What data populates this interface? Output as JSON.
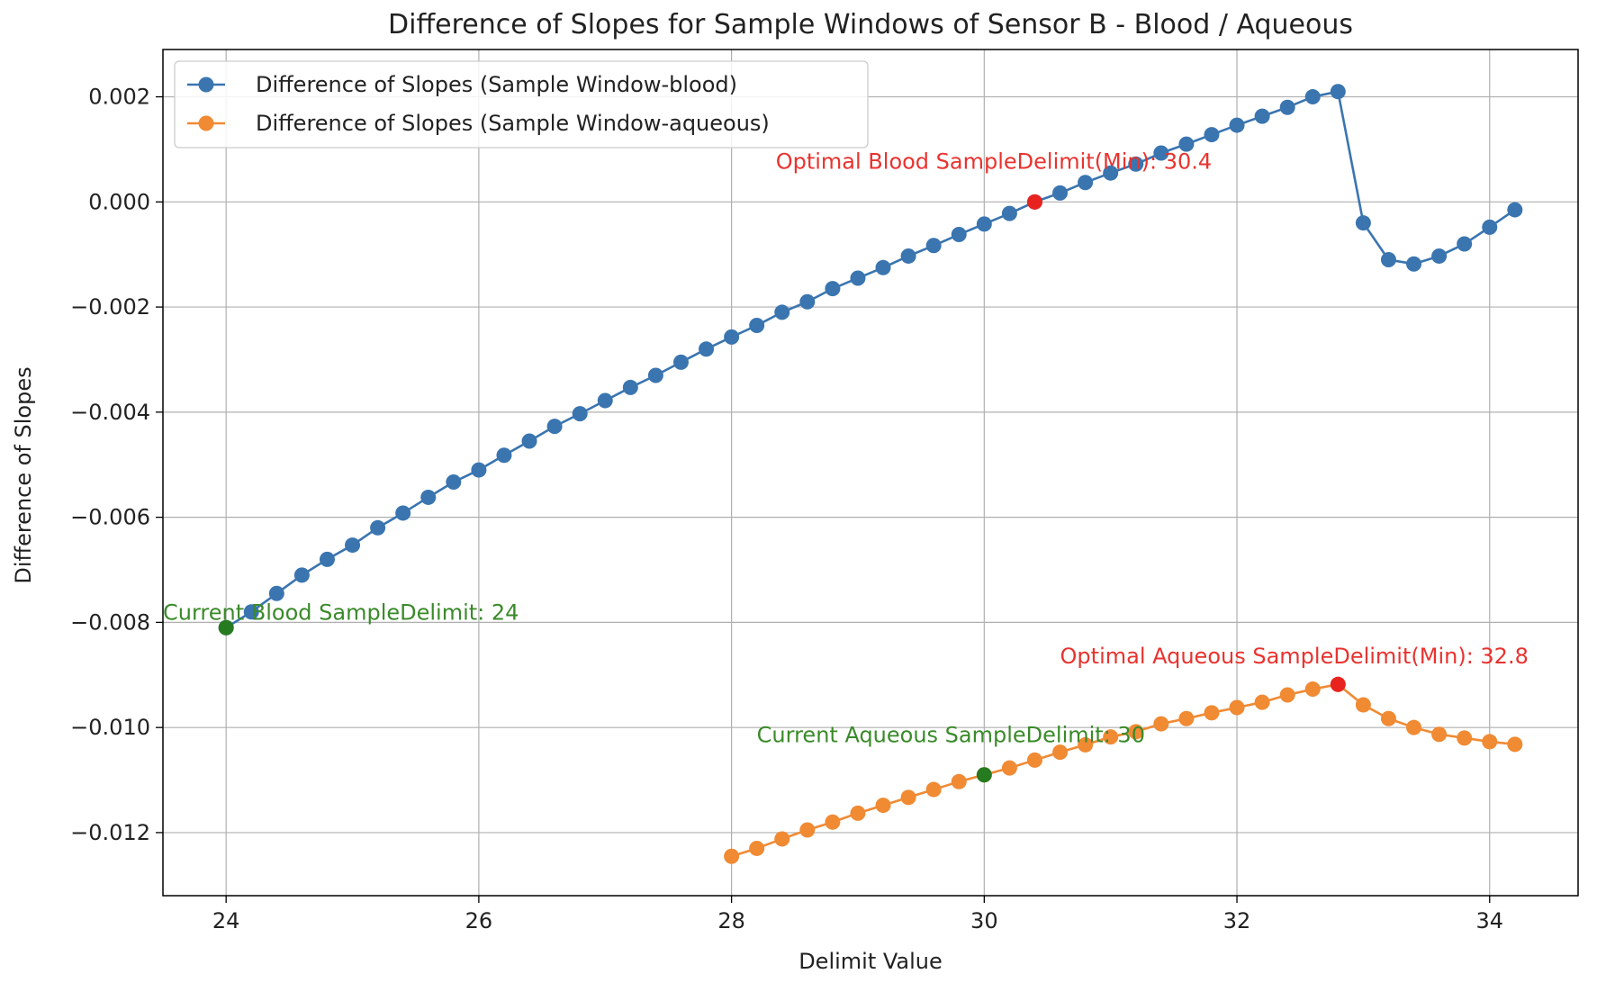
{
  "chart_data": {
    "type": "line",
    "title": "Difference of Slopes for Sample Windows of Sensor B - Blood / Aqueous",
    "xlabel": "Delimit Value",
    "ylabel": "Difference of Slopes",
    "xlim": [
      23.5,
      34.7
    ],
    "ylim": [
      -0.0132,
      0.0029
    ],
    "xticks": [
      24,
      26,
      28,
      30,
      32,
      34
    ],
    "xtick_labels": [
      "24",
      "26",
      "28",
      "30",
      "32",
      "34"
    ],
    "yticks": [
      0.002,
      0.0,
      -0.002,
      -0.004,
      -0.006,
      -0.008,
      -0.01,
      -0.012
    ],
    "ytick_labels": [
      "0.002",
      "0.000",
      "−0.002",
      "−0.004",
      "−0.006",
      "−0.008",
      "−0.010",
      "−0.012"
    ],
    "grid": true,
    "legend": "top-left",
    "series": [
      {
        "name": "Difference of Slopes (Sample Window-blood)",
        "color": "#3a75b0",
        "x": [
          24.0,
          24.2,
          24.4,
          24.6,
          24.8,
          25.0,
          25.2,
          25.4,
          25.6,
          25.8,
          26.0,
          26.2,
          26.4,
          26.6,
          26.8,
          27.0,
          27.2,
          27.4,
          27.6,
          27.8,
          28.0,
          28.2,
          28.4,
          28.6,
          28.8,
          29.0,
          29.2,
          29.4,
          29.6,
          29.8,
          30.0,
          30.2,
          30.4,
          30.6,
          30.8,
          31.0,
          31.2,
          31.4,
          31.6,
          31.8,
          32.0,
          32.2,
          32.4,
          32.6,
          32.8,
          33.0,
          33.2,
          33.4,
          33.6,
          33.8,
          34.0,
          34.2
        ],
        "y": [
          -0.0081,
          -0.0078,
          -0.00745,
          -0.0071,
          -0.0068,
          -0.00653,
          -0.0062,
          -0.00592,
          -0.00562,
          -0.00533,
          -0.0051,
          -0.00482,
          -0.00455,
          -0.00427,
          -0.00403,
          -0.00378,
          -0.00353,
          -0.0033,
          -0.00305,
          -0.0028,
          -0.00257,
          -0.00235,
          -0.0021,
          -0.0019,
          -0.00165,
          -0.00145,
          -0.00125,
          -0.00103,
          -0.00083,
          -0.00062,
          -0.00042,
          -0.00022,
          0.0,
          0.00017,
          0.00037,
          0.00055,
          0.00072,
          0.00093,
          0.0011,
          0.00128,
          0.00146,
          0.00163,
          0.0018,
          0.002,
          0.0021,
          -0.0004,
          -0.0011,
          -0.00118,
          -0.00103,
          -0.0008,
          -0.00048,
          -0.00015
        ]
      },
      {
        "name": "Difference of Slopes (Sample Window-aqueous)",
        "color": "#f08a33",
        "x": [
          28.0,
          28.2,
          28.4,
          28.6,
          28.8,
          29.0,
          29.2,
          29.4,
          29.6,
          29.8,
          30.0,
          30.2,
          30.4,
          30.6,
          30.8,
          31.0,
          31.2,
          31.4,
          31.6,
          31.8,
          32.0,
          32.2,
          32.4,
          32.6,
          32.8,
          33.0,
          33.2,
          33.4,
          33.6,
          33.8,
          34.0,
          34.2
        ],
        "y": [
          -0.01245,
          -0.0123,
          -0.01212,
          -0.01195,
          -0.0118,
          -0.01163,
          -0.01148,
          -0.01133,
          -0.01118,
          -0.01103,
          -0.0109,
          -0.01077,
          -0.01062,
          -0.01047,
          -0.01033,
          -0.01018,
          -0.01008,
          -0.00993,
          -0.00983,
          -0.00972,
          -0.00962,
          -0.00952,
          -0.00938,
          -0.00927,
          -0.00918,
          -0.00957,
          -0.00983,
          -0.01,
          -0.01013,
          -0.0102,
          -0.01027,
          -0.01032
        ]
      }
    ],
    "highlights": [
      {
        "x": 30.4,
        "y": 0.0,
        "color": "#e8231f"
      },
      {
        "x": 32.8,
        "y": -0.00918,
        "color": "#e8231f"
      },
      {
        "x": 24.0,
        "y": -0.0081,
        "color": "#267a1f"
      },
      {
        "x": 30.0,
        "y": -0.0109,
        "color": "#267a1f"
      }
    ],
    "annotations": [
      {
        "text": "Optimal Blood SampleDelimit(Min): 30.4",
        "x": 28.35,
        "y": 0.00063,
        "color": "#e8332f"
      },
      {
        "text": "Optimal Aqueous SampleDelimit(Min): 32.8",
        "x": 30.6,
        "y": -0.00878,
        "color": "#e8332f"
      },
      {
        "text": "Current Blood SampleDelimit: 24",
        "x": 23.5,
        "y": -0.00795,
        "color": "#3a8a2a"
      },
      {
        "text": "Current Aqueous SampleDelimit: 30",
        "x": 28.2,
        "y": -0.01028,
        "color": "#3a8a2a"
      }
    ]
  }
}
